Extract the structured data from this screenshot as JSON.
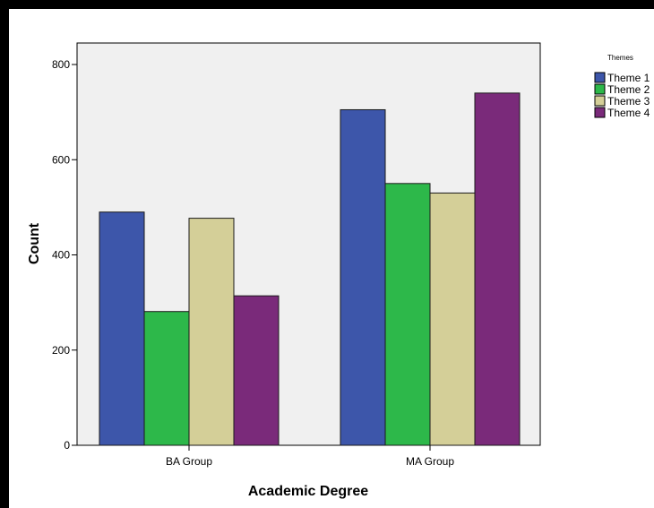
{
  "chart_data": {
    "type": "bar",
    "title": "",
    "xlabel": "Academic Degree",
    "ylabel": "Count",
    "categories": [
      "BA Group",
      "MA Group"
    ],
    "series": [
      {
        "name": "Theme 1",
        "values": [
          490,
          705
        ],
        "color": "#3d56aa"
      },
      {
        "name": "Theme 2",
        "values": [
          281,
          550
        ],
        "color": "#2db84a"
      },
      {
        "name": "Theme 3",
        "values": [
          477,
          530
        ],
        "color": "#d4cf98"
      },
      {
        "name": "Theme 4",
        "values": [
          314,
          740
        ],
        "color": "#7a2a7a"
      }
    ],
    "ylim": [
      0,
      800
    ],
    "yticks": [
      0,
      200,
      400,
      600,
      800
    ],
    "grid": false,
    "legend": {
      "title": "Themes",
      "placement": "top-right"
    },
    "plot_background": "#f0f0f0"
  }
}
